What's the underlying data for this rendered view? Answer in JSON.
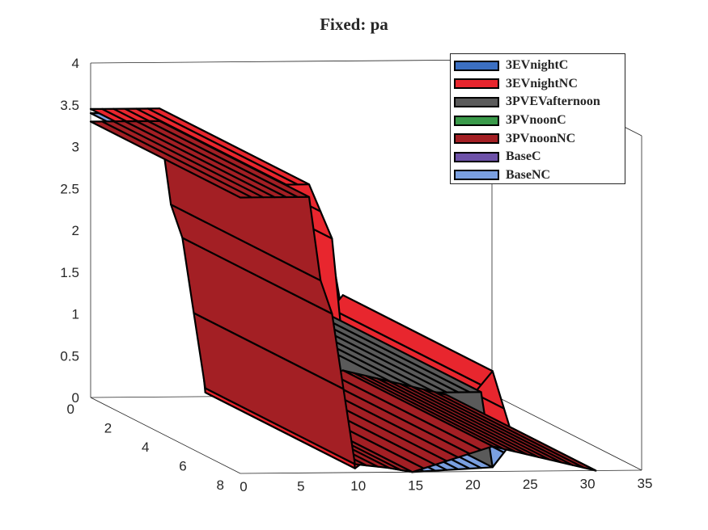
{
  "chart_data": {
    "type": "surface3d",
    "title": "Fixed: pa",
    "xlabel": "",
    "ylabel": "",
    "zlabel": "",
    "x_ticks": [
      "0",
      "5",
      "10",
      "15",
      "20",
      "25",
      "30",
      "35"
    ],
    "y_ticks": [
      "0",
      "2",
      "4",
      "6",
      "8"
    ],
    "z_ticks": [
      "0",
      "0.5",
      "1",
      "1.5",
      "2",
      "2.5",
      "3",
      "3.5",
      "4"
    ],
    "xlim": [
      0,
      35
    ],
    "ylim": [
      0,
      8
    ],
    "zlim": [
      0,
      4
    ],
    "legend_position": "top-right",
    "grid": false,
    "series": [
      {
        "name": "3EVnightC",
        "color": "#3b6fc2"
      },
      {
        "name": "3EVnightNC",
        "color": "#e8262e"
      },
      {
        "name": "3PVEVafternoon",
        "color": "#5a5a5a"
      },
      {
        "name": "3PVnoonC",
        "color": "#3a9a4a"
      },
      {
        "name": "3PVnoonNC",
        "color": "#a31f24"
      },
      {
        "name": "BaseC",
        "color": "#6d51a8"
      },
      {
        "name": "BaseNC",
        "color": "#7a9fe0"
      }
    ],
    "surfaces": [
      {
        "series": "BaseNC",
        "y_range": [
          0,
          8
        ],
        "points": [
          [
            0,
            3.4
          ],
          [
            6,
            3.4
          ],
          [
            8,
            2.6
          ],
          [
            10,
            1.05
          ],
          [
            13,
            0.05
          ],
          [
            15,
            0
          ],
          [
            22,
            0.05
          ],
          [
            24,
            0.4
          ],
          [
            31,
            0
          ]
        ]
      },
      {
        "series": "3EVnightNC",
        "y_range": [
          0,
          8
        ],
        "points": [
          [
            0,
            3.45
          ],
          [
            6,
            3.45
          ],
          [
            8,
            2.8
          ],
          [
            10,
            0.05
          ],
          [
            13,
            0.35
          ],
          [
            15,
            0.05
          ],
          [
            22,
            1.2
          ],
          [
            24,
            0.3
          ],
          [
            31,
            0
          ]
        ]
      },
      {
        "series": "3PVEVafternoon",
        "y_range": [
          0,
          8
        ],
        "points": [
          [
            13,
            0.05
          ],
          [
            15,
            0.95
          ],
          [
            21,
            0.95
          ],
          [
            22,
            0.05
          ]
        ]
      },
      {
        "series": "3PVnoonNC",
        "y_range": [
          0,
          8
        ],
        "points": [
          [
            0,
            3.3
          ],
          [
            6,
            3.3
          ],
          [
            7,
            2.3
          ],
          [
            8,
            1.9
          ],
          [
            10,
            0.1
          ],
          [
            13,
            0.05
          ],
          [
            15,
            0
          ],
          [
            22,
            0.3
          ],
          [
            31,
            0
          ]
        ]
      }
    ]
  }
}
